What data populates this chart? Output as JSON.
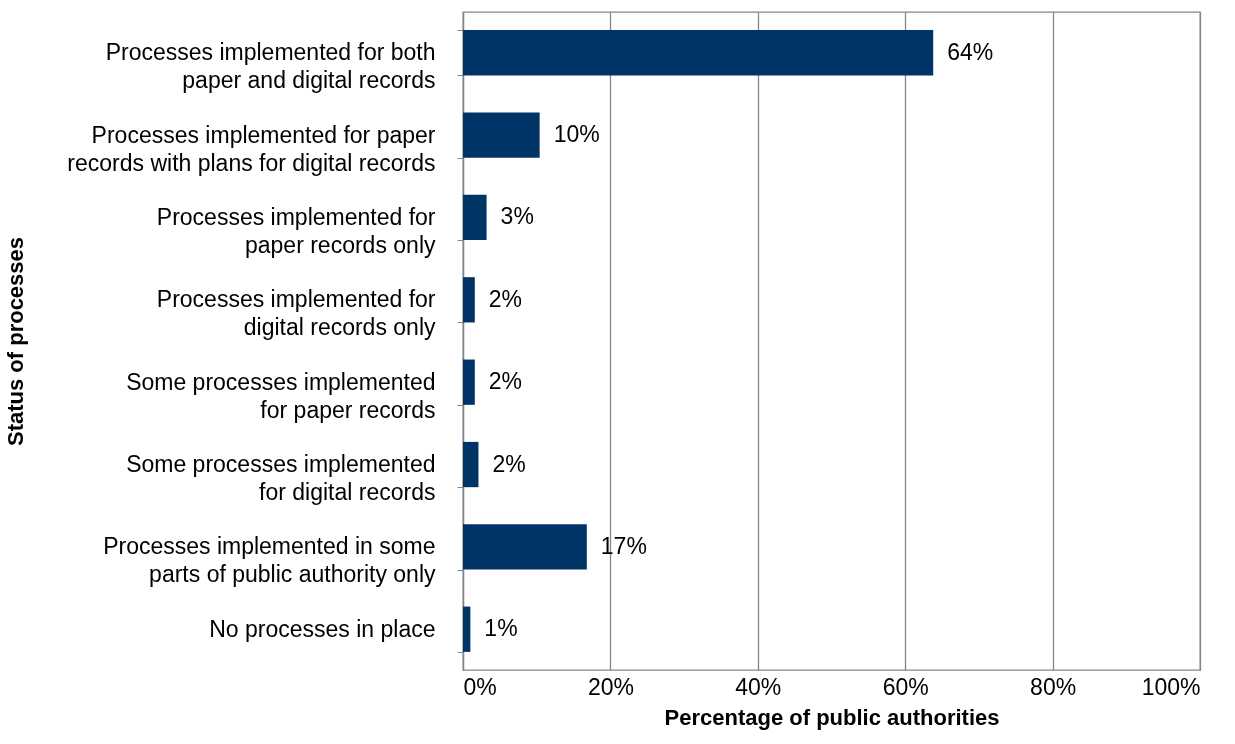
{
  "chart_data": {
    "type": "bar",
    "orientation": "horizontal",
    "xlabel": "Percentage of public authorities",
    "ylabel": "Status of processes",
    "categories": [
      "Processes implemented for both\npaper and digital records",
      "Processes implemented for paper\nrecords with plans for digital records",
      "Processes implemented for\npaper records only",
      "Processes implemented for\ndigital records only",
      "Some processes implemented\nfor paper records",
      "Some processes implemented\nfor digital records",
      "Processes implemented in some\nparts of public authority only",
      "No processes in place"
    ],
    "values": [
      63.8,
      10.4,
      3.2,
      1.6,
      1.6,
      2.1,
      16.8,
      1.0
    ],
    "value_labels": [
      "64%",
      "10%",
      "3%",
      "2%",
      "2%",
      "2%",
      "17%",
      "1%"
    ],
    "color": "#003366",
    "xlim": [
      0,
      100
    ],
    "xticks": [
      {
        "value": 0,
        "label": "0%"
      },
      {
        "value": 20,
        "label": "20%"
      },
      {
        "value": 40,
        "label": "40%"
      },
      {
        "value": 60,
        "label": "60%"
      },
      {
        "value": 80,
        "label": "80%"
      },
      {
        "value": 100,
        "label": "100%"
      }
    ],
    "grid": "x"
  }
}
